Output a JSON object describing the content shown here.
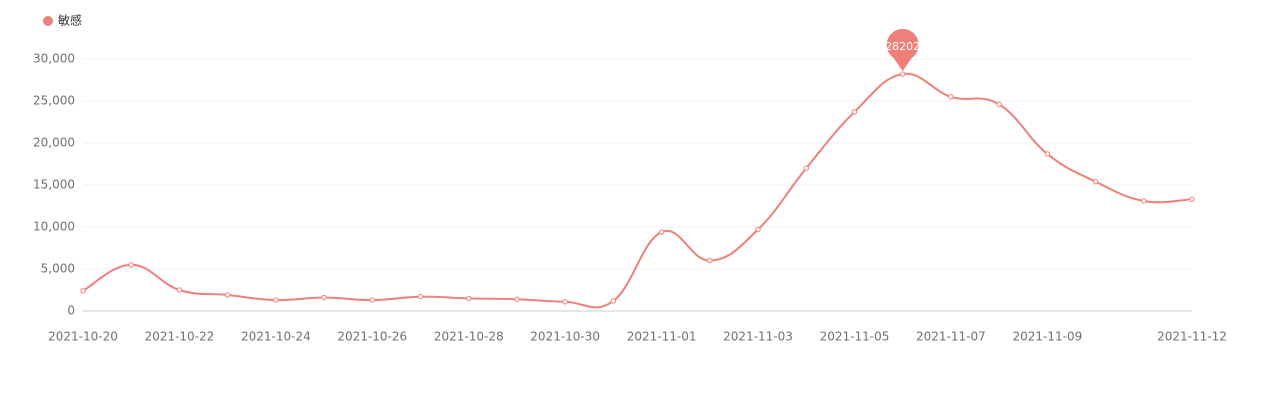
{
  "chart_data": {
    "type": "line",
    "categories": [
      "2021-10-20",
      null,
      "2021-10-22",
      null,
      "2021-10-24",
      null,
      "2021-10-26",
      null,
      "2021-10-28",
      null,
      "2021-10-30",
      null,
      "2021-11-01",
      null,
      "2021-11-03",
      null,
      "2021-11-05",
      null,
      "2021-11-07",
      null,
      "2021-11-09",
      null,
      null,
      "2021-11-12"
    ],
    "series": [
      {
        "name": "敏感",
        "color": "#ee8079",
        "values": [
          2400,
          5500,
          2500,
          1900,
          1300,
          1600,
          1300,
          1700,
          1500,
          1400,
          1100,
          1200,
          9400,
          6000,
          9700,
          17000,
          23700,
          28202,
          25500,
          24600,
          18700,
          15400,
          13100,
          13300
        ]
      }
    ],
    "ylim": [
      0,
      30000
    ],
    "yticks": [
      0,
      {
        "value": 5000,
        "label": "5,000"
      },
      {
        "value": 10000,
        "label": "10,000"
      },
      {
        "value": 15000,
        "label": "15,000"
      },
      {
        "value": 20000,
        "label": "20,000"
      },
      {
        "value": 25000,
        "label": "25,000"
      },
      {
        "value": 30000,
        "label": "30,000"
      }
    ],
    "grid": true,
    "legend": "top-left"
  }
}
